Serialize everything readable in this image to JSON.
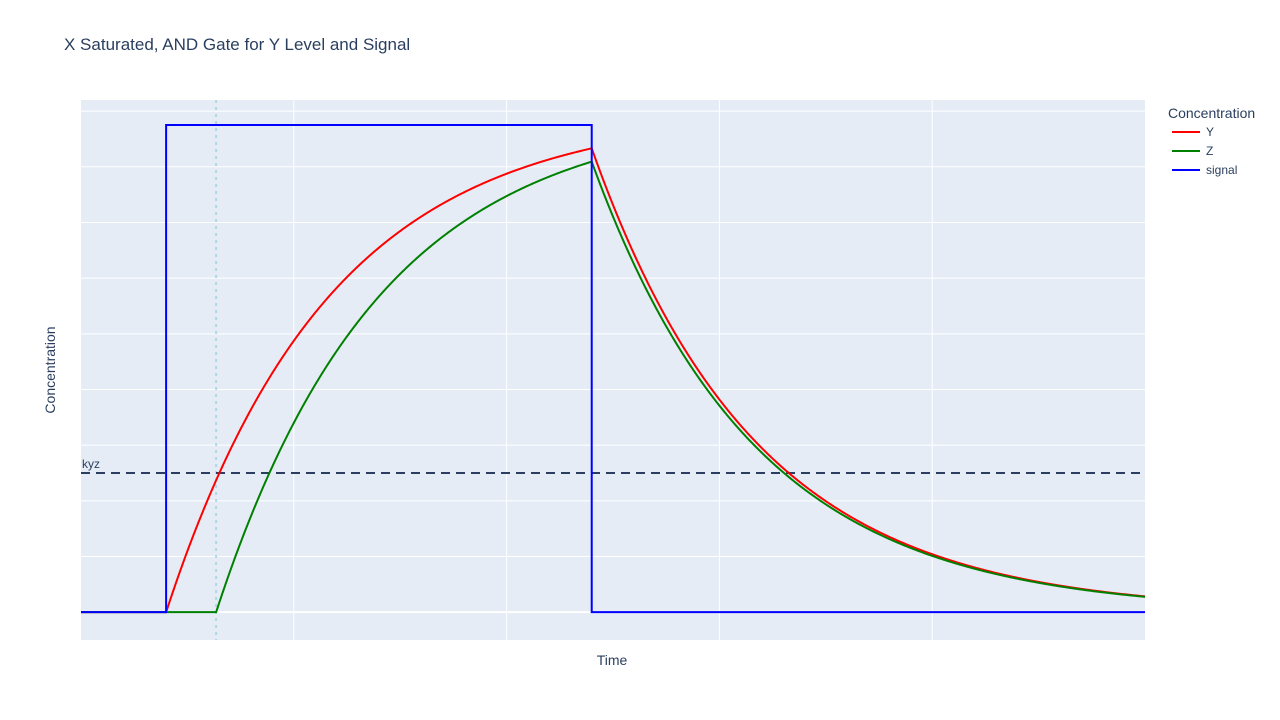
{
  "chart_data": {
    "type": "line",
    "title": "X Saturated, AND Gate for Y Level and Signal",
    "xlabel": "Time",
    "ylabel": "Concentration",
    "xlim": [
      0,
      10
    ],
    "ylim": [
      -0.05,
      0.92
    ],
    "grid": true,
    "show_tick_labels": false,
    "legend": {
      "title": "Concentration",
      "placement": "right"
    },
    "colors": {
      "Y": "#ff0000",
      "Z": "#008000",
      "signal": "#0000ff",
      "threshold": "#2a3f5f",
      "marker": "#add8e6",
      "plot_bg": "#e5ecf6",
      "grid": "#ffffff"
    },
    "signal": {
      "low": 0.0,
      "high": 0.875,
      "on": 0.8,
      "off": 4.8
    },
    "Y": {
      "t_on": 0.8,
      "t_off": 4.8,
      "vmax": 0.9,
      "rate_rise": 0.65,
      "rate_decay": 0.65
    },
    "Z": {
      "t_on": 1.27,
      "t_off": 4.8,
      "vmax": 0.9,
      "rate_rise": 0.65,
      "rate_decay": 0.65
    },
    "series": [
      {
        "name": "Y",
        "color": "#ff0000"
      },
      {
        "name": "Z",
        "color": "#008000"
      },
      {
        "name": "signal",
        "color": "#0000ff"
      }
    ],
    "threshold": {
      "label": "kyz",
      "value": 0.25
    },
    "marker_line": {
      "x": 1.27
    }
  }
}
